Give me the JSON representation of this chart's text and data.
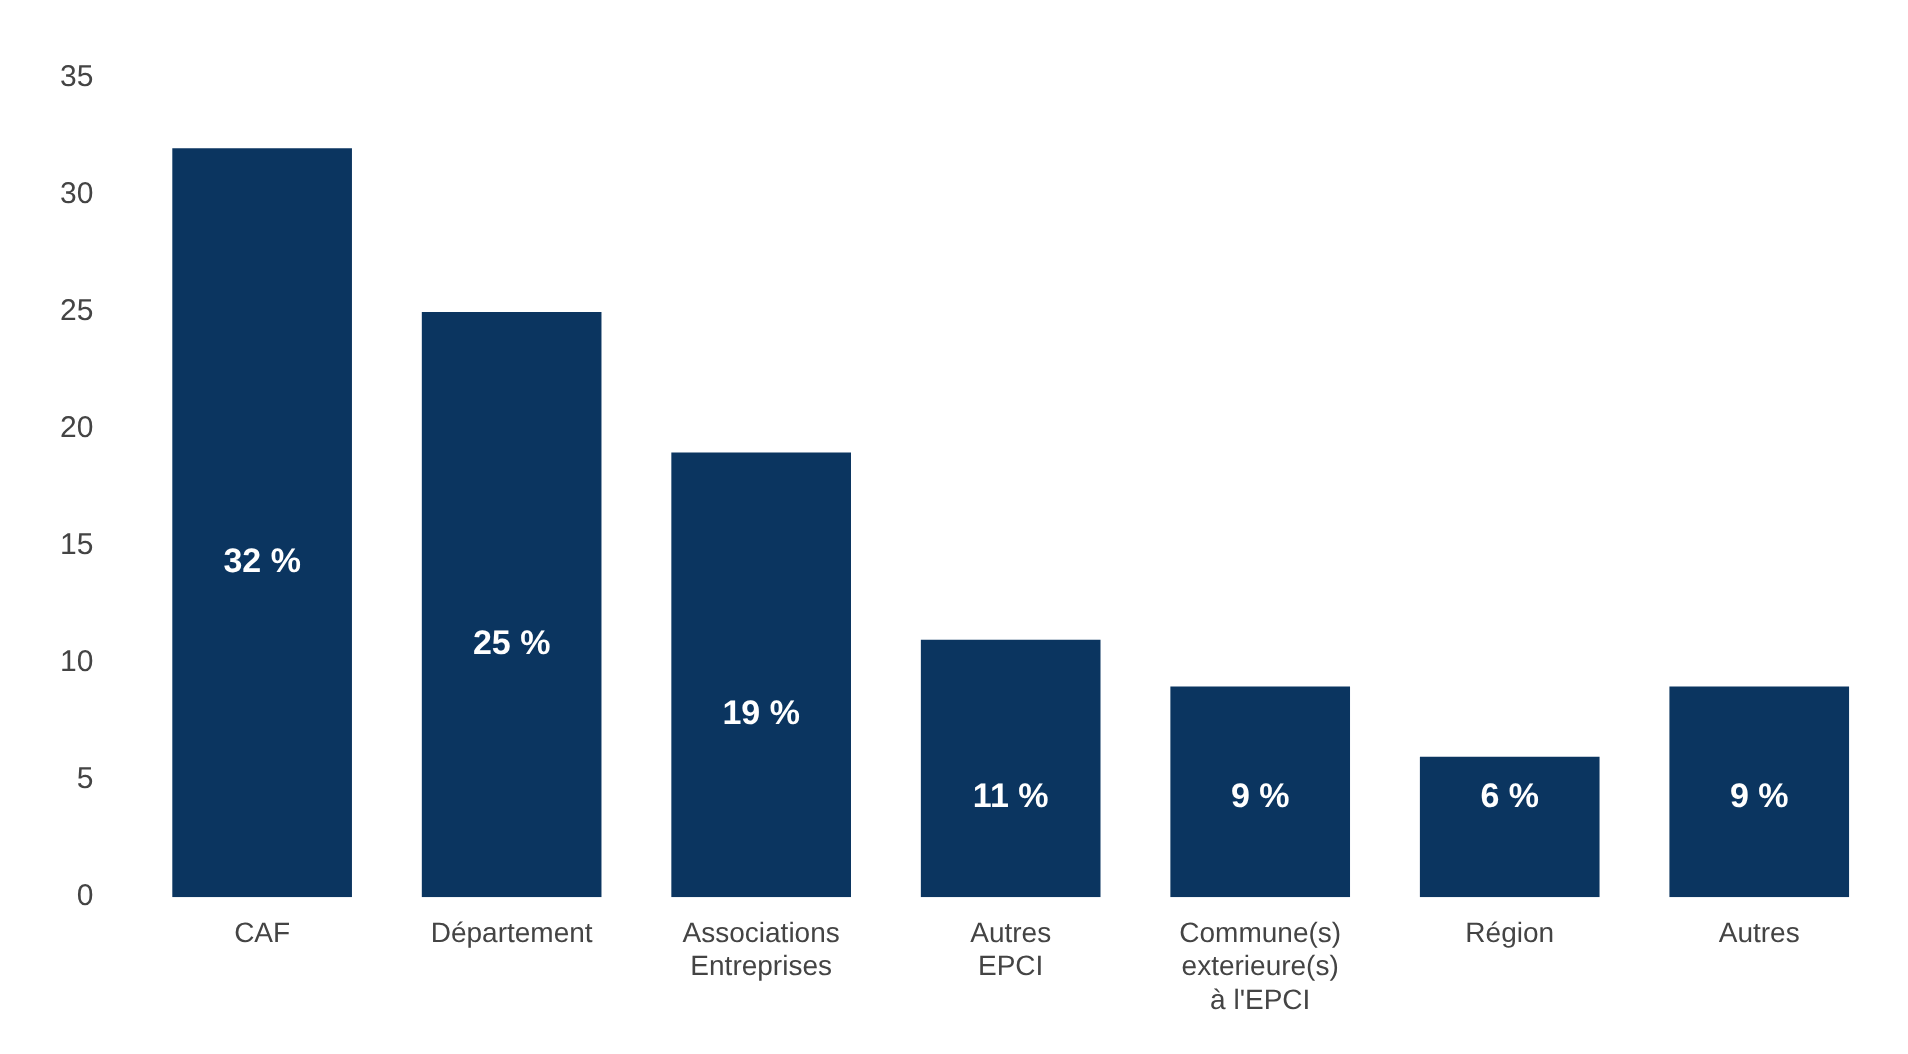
{
  "chart_data": {
    "type": "bar",
    "categories": [
      "CAF",
      "Département",
      "Associations\nEntreprises",
      "Autres\nEPCI",
      "Commune(s)\nexterieure(s)\nà l'EPCI",
      "Région",
      "Autres"
    ],
    "values": [
      32,
      25,
      19,
      11,
      9,
      6,
      9
    ],
    "value_labels": [
      "32 %",
      "25 %",
      "19 %",
      "11 %",
      "9 %",
      "6 %",
      "9 %"
    ],
    "color": "#0b3560",
    "ylim": [
      0,
      35
    ],
    "yticks": [
      0,
      5,
      10,
      15,
      20,
      25,
      30,
      35
    ],
    "grid": false
  }
}
